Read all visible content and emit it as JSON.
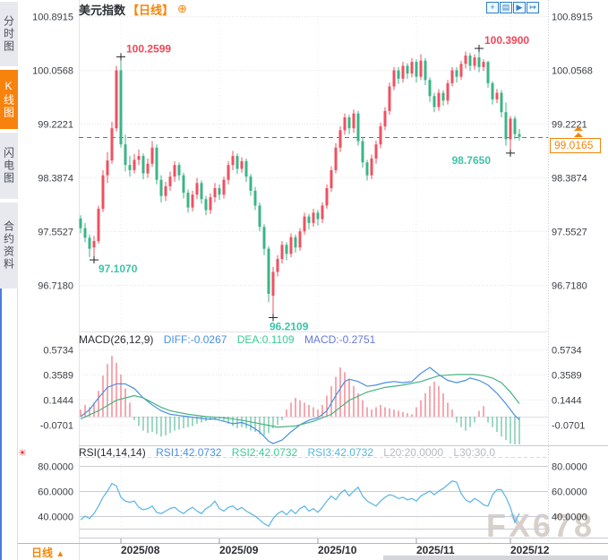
{
  "header": {
    "title": "美元指数",
    "period_tag": "【日线】",
    "add_icon": "⊕"
  },
  "toolbar": {
    "icons": [
      {
        "name": "pan-crosshair",
        "glyph": "+"
      },
      {
        "name": "axis-scale",
        "glyph": "▤"
      },
      {
        "name": "axis-play",
        "glyph": "▶"
      },
      {
        "name": "shift-right",
        "glyph": "↦"
      }
    ]
  },
  "sidebar": {
    "tabs": [
      {
        "label": "分时图",
        "active": false
      },
      {
        "label": "K线图",
        "active": true
      },
      {
        "label": "闪电图",
        "active": false
      },
      {
        "label": "合约资料",
        "active": false
      }
    ]
  },
  "bottom": {
    "timeframe": "日线",
    "timeframe_arrow": "▲"
  },
  "watermark": "FX678",
  "current_price_label": "99.0165",
  "rsi_alert_icon": "☀",
  "colors": {
    "up": "#ef5160",
    "down": "#3cb487",
    "accent_orange": "#f5850a",
    "dashed_line_blue": "#2d7bf0",
    "diff_blue": "#4a8fe2",
    "dea_green": "#3ecb96",
    "rsi_line": "#57b4e6",
    "annotation_red": "#ef4757",
    "annotation_teal": "#3fc3a8",
    "grid": "#e3e5ea",
    "grid_solid": "#c9ccd3",
    "axis_text": "#3a3e44",
    "date_text": "#2b2e33"
  },
  "chart_data": {
    "type": "candlestick+macd+rsi",
    "symbol": "美元指数",
    "period": "日线",
    "x_axis": {
      "labels": [
        "2025/08",
        "2025/09",
        "2025/10",
        "2025/11",
        "2025/12"
      ],
      "label_indices": [
        9,
        31,
        53,
        75,
        96
      ]
    },
    "price_panel": {
      "y_ticks": [
        "100.8915",
        "100.0568",
        "99.2221",
        "98.3874",
        "97.5527",
        "96.7180"
      ],
      "y_tick_values": [
        100.8915,
        100.0568,
        99.2221,
        98.3874,
        97.5527,
        96.718
      ],
      "current_price": 99.0165,
      "candles": [
        [
          97.75,
          97.8,
          97.52,
          97.6
        ],
        [
          97.6,
          97.68,
          97.38,
          97.45
        ],
        [
          97.45,
          97.5,
          97.15,
          97.28
        ],
        [
          97.3,
          97.48,
          97.107,
          97.4
        ],
        [
          97.4,
          97.95,
          97.36,
          97.9
        ],
        [
          97.9,
          98.5,
          97.85,
          98.42
        ],
        [
          98.42,
          98.78,
          98.3,
          98.65
        ],
        [
          98.65,
          99.25,
          98.6,
          99.15
        ],
        [
          99.15,
          100.12,
          99.1,
          100.05
        ],
        [
          100.05,
          100.2599,
          98.85,
          98.9
        ],
        [
          98.9,
          99.05,
          98.48,
          98.58
        ],
        [
          98.58,
          98.72,
          98.4,
          98.5
        ],
        [
          98.5,
          98.75,
          98.45,
          98.66
        ],
        [
          98.66,
          98.82,
          98.58,
          98.72
        ],
        [
          98.72,
          98.76,
          98.36,
          98.45
        ],
        [
          98.45,
          98.68,
          98.38,
          98.6
        ],
        [
          98.6,
          98.95,
          98.55,
          98.85
        ],
        [
          98.85,
          98.9,
          98.28,
          98.35
        ],
        [
          98.35,
          98.42,
          98.0,
          98.1
        ],
        [
          98.1,
          98.32,
          98.02,
          98.25
        ],
        [
          98.25,
          98.48,
          98.18,
          98.4
        ],
        [
          98.4,
          98.64,
          98.32,
          98.58
        ],
        [
          98.58,
          98.62,
          98.34,
          98.42
        ],
        [
          98.42,
          98.46,
          98.06,
          98.15
        ],
        [
          98.15,
          98.2,
          97.84,
          97.92
        ],
        [
          97.92,
          98.18,
          97.86,
          98.12
        ],
        [
          98.12,
          98.38,
          98.05,
          98.3
        ],
        [
          98.3,
          98.34,
          97.98,
          98.05
        ],
        [
          98.05,
          98.1,
          97.8,
          97.88
        ],
        [
          97.88,
          98.14,
          97.82,
          98.08
        ],
        [
          98.08,
          98.3,
          98.0,
          98.22
        ],
        [
          98.22,
          98.28,
          98.04,
          98.12
        ],
        [
          98.12,
          98.4,
          98.06,
          98.35
        ],
        [
          98.35,
          98.64,
          98.28,
          98.58
        ],
        [
          98.58,
          98.8,
          98.5,
          98.72
        ],
        [
          98.72,
          98.76,
          98.44,
          98.52
        ],
        [
          98.52,
          98.7,
          98.46,
          98.64
        ],
        [
          98.64,
          98.68,
          98.32,
          98.4
        ],
        [
          98.4,
          98.44,
          98.1,
          98.18
        ],
        [
          98.18,
          98.24,
          97.88,
          97.95
        ],
        [
          97.95,
          98.0,
          97.55,
          97.62
        ],
        [
          97.62,
          97.66,
          97.18,
          97.28
        ],
        [
          97.28,
          97.32,
          96.45,
          96.58
        ],
        [
          96.55,
          97.0,
          96.2109,
          96.92
        ],
        [
          96.92,
          97.18,
          96.85,
          97.12
        ],
        [
          97.12,
          97.4,
          97.05,
          97.34
        ],
        [
          97.34,
          97.38,
          97.1,
          97.2
        ],
        [
          97.2,
          97.52,
          97.15,
          97.46
        ],
        [
          97.46,
          97.5,
          97.22,
          97.3
        ],
        [
          97.3,
          97.6,
          97.25,
          97.55
        ],
        [
          97.55,
          97.84,
          97.5,
          97.78
        ],
        [
          97.78,
          97.82,
          97.58,
          97.68
        ],
        [
          97.68,
          97.9,
          97.62,
          97.84
        ],
        [
          97.84,
          97.88,
          97.64,
          97.74
        ],
        [
          97.74,
          98.0,
          97.68,
          97.95
        ],
        [
          97.95,
          98.28,
          97.9,
          98.22
        ],
        [
          98.22,
          98.56,
          98.16,
          98.5
        ],
        [
          98.5,
          98.92,
          98.45,
          98.85
        ],
        [
          98.85,
          99.18,
          98.78,
          99.12
        ],
        [
          99.12,
          99.38,
          99.05,
          99.32
        ],
        [
          99.32,
          99.36,
          99.06,
          99.15
        ],
        [
          99.15,
          99.44,
          99.08,
          99.38
        ],
        [
          99.38,
          99.42,
          98.88,
          98.95
        ],
        [
          98.95,
          99.0,
          98.54,
          98.62
        ],
        [
          98.62,
          98.66,
          98.34,
          98.42
        ],
        [
          98.42,
          98.74,
          98.36,
          98.68
        ],
        [
          98.68,
          98.96,
          98.6,
          98.9
        ],
        [
          98.9,
          99.24,
          98.84,
          99.18
        ],
        [
          99.18,
          99.48,
          99.12,
          99.42
        ],
        [
          99.42,
          99.86,
          99.36,
          99.8
        ],
        [
          99.8,
          100.1,
          99.74,
          100.05
        ],
        [
          100.05,
          100.1,
          99.84,
          99.92
        ],
        [
          99.92,
          100.18,
          99.86,
          100.12
        ],
        [
          100.12,
          100.16,
          99.92,
          100.0
        ],
        [
          100.0,
          100.24,
          99.94,
          100.18
        ],
        [
          100.18,
          100.22,
          99.86,
          99.95
        ],
        [
          99.95,
          100.3,
          99.9,
          100.2
        ],
        [
          100.2,
          100.24,
          99.82,
          99.9
        ],
        [
          99.9,
          99.94,
          99.56,
          99.65
        ],
        [
          99.65,
          99.7,
          99.4,
          99.48
        ],
        [
          99.48,
          99.76,
          99.42,
          99.7
        ],
        [
          99.7,
          99.74,
          99.5,
          99.58
        ],
        [
          99.58,
          99.9,
          99.52,
          99.85
        ],
        [
          99.85,
          100.1,
          99.8,
          100.05
        ],
        [
          100.05,
          100.1,
          99.86,
          99.95
        ],
        [
          99.95,
          100.2,
          99.9,
          100.15
        ],
        [
          100.15,
          100.34,
          100.08,
          100.28
        ],
        [
          100.28,
          100.32,
          100.04,
          100.12
        ],
        [
          100.12,
          100.3,
          100.06,
          100.25
        ],
        [
          100.25,
          100.39,
          100.02,
          100.1
        ],
        [
          100.1,
          100.22,
          100.04,
          100.18
        ],
        [
          100.18,
          100.2,
          99.78,
          99.85
        ],
        [
          99.85,
          99.88,
          99.52,
          99.6
        ],
        [
          99.6,
          99.76,
          99.54,
          99.7
        ],
        [
          99.7,
          99.74,
          99.32,
          99.4
        ],
        [
          99.4,
          99.55,
          98.88,
          98.98
        ],
        [
          98.98,
          99.34,
          98.765,
          99.3
        ],
        [
          99.3,
          99.34,
          98.98,
          99.06
        ],
        [
          99.06,
          99.14,
          98.96,
          99.0165
        ]
      ],
      "annotations": [
        {
          "index": 9,
          "price": 100.2599,
          "label": "100.2599",
          "side": "high",
          "align": "right",
          "color": "red"
        },
        {
          "index": 89,
          "price": 100.39,
          "label": "100.3900",
          "side": "high",
          "align": "right",
          "color": "red"
        },
        {
          "index": 3,
          "price": 97.107,
          "label": "97.1070",
          "side": "low",
          "align": "right",
          "color": "teal"
        },
        {
          "index": 43,
          "price": 96.2109,
          "label": "96.2109",
          "side": "low",
          "align": "center",
          "color": "teal"
        },
        {
          "index": 96,
          "price": 98.765,
          "label": "98.7650",
          "side": "low",
          "align": "left",
          "color": "teal"
        }
      ]
    },
    "macd_panel": {
      "title": "MACD(26,12,9)",
      "diff_label": "DIFF:-0.0267",
      "dea_label": "DEA:0.1109",
      "macd_label": "MACD:-0.2751",
      "y_ticks": [
        "0.5734",
        "0.3589",
        "0.1444",
        "-0.0701"
      ],
      "y_tick_values": [
        0.5734,
        0.3589,
        0.1444,
        -0.0701
      ],
      "histogram": [
        0.06,
        0.1,
        0.08,
        0.12,
        0.22,
        0.35,
        0.45,
        0.52,
        0.46,
        0.36,
        0.24,
        0.12,
        -0.03,
        -0.08,
        -0.12,
        -0.14,
        -0.13,
        -0.15,
        -0.17,
        -0.16,
        -0.14,
        -0.12,
        -0.11,
        -0.1,
        -0.09,
        -0.08,
        -0.06,
        -0.05,
        -0.04,
        -0.03,
        -0.03,
        -0.02,
        -0.04,
        -0.06,
        -0.08,
        -0.1,
        -0.09,
        -0.1,
        -0.12,
        -0.13,
        -0.15,
        -0.16,
        -0.14,
        -0.1,
        -0.07,
        -0.03,
        0.06,
        0.12,
        0.16,
        0.14,
        0.12,
        0.1,
        0.08,
        0.06,
        0.1,
        0.18,
        0.26,
        0.34,
        0.42,
        0.38,
        0.32,
        0.26,
        0.2,
        0.14,
        0.08,
        0.06,
        0.08,
        0.1,
        0.08,
        0.07,
        0.06,
        0.05,
        0.04,
        0.03,
        0.02,
        0.08,
        0.14,
        0.2,
        0.26,
        0.3,
        0.26,
        0.2,
        0.12,
        0.06,
        -0.05,
        -0.09,
        -0.12,
        -0.09,
        -0.05,
        0.05,
        0.09,
        -0.05,
        -0.09,
        -0.13,
        -0.17,
        -0.2,
        -0.23,
        -0.25,
        -0.2751
      ],
      "diff_points": [
        [
          0,
          0.0
        ],
        [
          2,
          0.06
        ],
        [
          4,
          0.16
        ],
        [
          6,
          0.25
        ],
        [
          8,
          0.28
        ],
        [
          10,
          0.28
        ],
        [
          12,
          0.24
        ],
        [
          14,
          0.16
        ],
        [
          16,
          0.1
        ],
        [
          18,
          0.05
        ],
        [
          20,
          0.02
        ],
        [
          22,
          0.01
        ],
        [
          24,
          0.0
        ],
        [
          26,
          -0.01
        ],
        [
          28,
          -0.02
        ],
        [
          30,
          -0.02
        ],
        [
          32,
          -0.04
        ],
        [
          34,
          -0.06
        ],
        [
          36,
          -0.05
        ],
        [
          38,
          -0.08
        ],
        [
          40,
          -0.13
        ],
        [
          42,
          -0.21
        ],
        [
          43,
          -0.23
        ],
        [
          45,
          -0.2
        ],
        [
          47,
          -0.13
        ],
        [
          49,
          -0.07
        ],
        [
          51,
          -0.03
        ],
        [
          53,
          -0.01
        ],
        [
          55,
          0.05
        ],
        [
          57,
          0.18
        ],
        [
          59,
          0.3
        ],
        [
          60,
          0.32
        ],
        [
          62,
          0.3
        ],
        [
          64,
          0.26
        ],
        [
          66,
          0.27
        ],
        [
          68,
          0.29
        ],
        [
          70,
          0.3
        ],
        [
          72,
          0.29
        ],
        [
          74,
          0.3
        ],
        [
          76,
          0.37
        ],
        [
          78,
          0.42
        ],
        [
          80,
          0.36
        ],
        [
          82,
          0.31
        ],
        [
          84,
          0.29
        ],
        [
          86,
          0.31
        ],
        [
          87,
          0.33
        ],
        [
          89,
          0.31
        ],
        [
          91,
          0.27
        ],
        [
          93,
          0.2
        ],
        [
          95,
          0.11
        ],
        [
          97,
          0.01
        ],
        [
          98,
          -0.0267
        ]
      ],
      "dea_points": [
        [
          0,
          -0.02
        ],
        [
          4,
          0.05
        ],
        [
          8,
          0.14
        ],
        [
          12,
          0.18
        ],
        [
          14,
          0.16
        ],
        [
          16,
          0.12
        ],
        [
          18,
          0.08
        ],
        [
          20,
          0.05
        ],
        [
          24,
          0.02
        ],
        [
          28,
          0.0
        ],
        [
          32,
          -0.01
        ],
        [
          36,
          -0.03
        ],
        [
          40,
          -0.06
        ],
        [
          44,
          -0.09
        ],
        [
          48,
          -0.08
        ],
        [
          52,
          -0.04
        ],
        [
          56,
          0.02
        ],
        [
          60,
          0.14
        ],
        [
          64,
          0.21
        ],
        [
          68,
          0.25
        ],
        [
          72,
          0.27
        ],
        [
          76,
          0.3
        ],
        [
          80,
          0.35
        ],
        [
          84,
          0.36
        ],
        [
          88,
          0.36
        ],
        [
          90,
          0.35
        ],
        [
          92,
          0.33
        ],
        [
          94,
          0.29
        ],
        [
          96,
          0.21
        ],
        [
          98,
          0.1109
        ]
      ]
    },
    "rsi_panel": {
      "title": "RSI(14,14,14)",
      "labels": [
        {
          "text": "RSI1:42.0732",
          "color": "blue"
        },
        {
          "text": "RSI2:42.0732",
          "color": "green"
        },
        {
          "text": "RSI3:42.0732",
          "color": "cyan"
        },
        {
          "text": "L20:20.0000",
          "color": "gray"
        },
        {
          "text": "L30:30.0",
          "color": "gray"
        }
      ],
      "y_ticks": [
        "80.0000",
        "60.0000",
        "40.0000"
      ],
      "y_tick_values": [
        80,
        60,
        40
      ],
      "l30_level": 30.0,
      "values": [
        37,
        40,
        38,
        42,
        48,
        55,
        60,
        66,
        64,
        55,
        52,
        51,
        52,
        47,
        45,
        46,
        48,
        43,
        42,
        44,
        46,
        47,
        44,
        42,
        45,
        47,
        44,
        42,
        46,
        48,
        52,
        46,
        44,
        47,
        48,
        45,
        47,
        44,
        42,
        40,
        37,
        34,
        32,
        38,
        42,
        44,
        41,
        45,
        42,
        46,
        48,
        44,
        46,
        43,
        47,
        52,
        56,
        53,
        58,
        61,
        56,
        60,
        63,
        56,
        52,
        50,
        48,
        52,
        55,
        57,
        56,
        54,
        55,
        53,
        54,
        52,
        56,
        58,
        60,
        57,
        60,
        62,
        65,
        68,
        67,
        58,
        53,
        51,
        54,
        52,
        49,
        48,
        57,
        61,
        61,
        55,
        47,
        35,
        42
      ]
    }
  }
}
